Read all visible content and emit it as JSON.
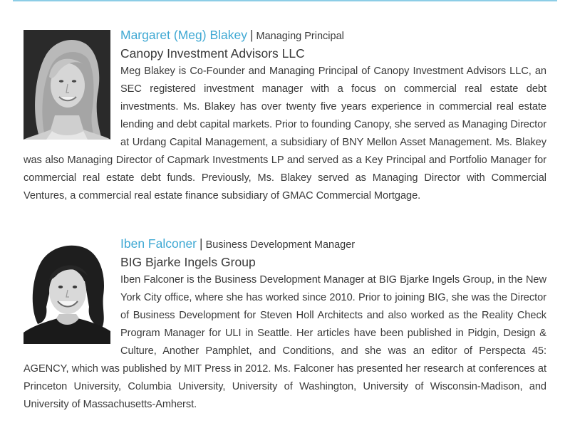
{
  "profiles": [
    {
      "name": "Margaret (Meg) Blakey",
      "separator": "|",
      "role": "Managing Principal",
      "organization": "Canopy Investment Advisors LLC",
      "bio": "Meg Blakey is Co-Founder and Managing Principal of Canopy Investment Advisors LLC, an SEC registered investment manager with a focus on commercial real estate debt investments. Ms. Blakey has over twenty five years experience in commercial real estate lending and debt capital markets. Prior to founding Canopy, she served as Managing Director at Urdang Capital Management, a subsidiary of BNY Mellon Asset Management. Ms. Blakey was also Managing Director of Capmark Investments LP and served as a Key Principal and Portfolio Manager for commercial real estate debt funds. Previously, Ms. Blakey served as Managing Director with Commercial Ventures, a commercial real estate finance subsidiary of GMAC Commercial Mortgage."
    },
    {
      "name": "Iben Falconer",
      "separator": "|",
      "role": "Business Development Manager",
      "organization": "BIG Bjarke Ingels Group",
      "bio": "Iben Falconer is the Business Development Manager at BIG Bjarke Ingels Group, in the New York City office, where she has worked since 2010. Prior to joining BIG, she was the Director of Business Development for Steven Holl Architects and also worked as the Reality Check Program Manager for ULI in Seattle. Her articles have been published in Pidgin, Design & Culture, Another Pamphlet, and Conditions, and she was an editor of Perspecta 45: AGENCY, which was published by MIT Press in 2012. Ms. Falconer has presented her research at conferences at Princeton University, Columbia University, University of Washington, University of Wisconsin-Madison, and University of Massachusetts-Amherst."
    }
  ],
  "colors": {
    "name": "#3ea8d3",
    "rule": "#8ccde6",
    "body_text": "#3a3a3a"
  }
}
